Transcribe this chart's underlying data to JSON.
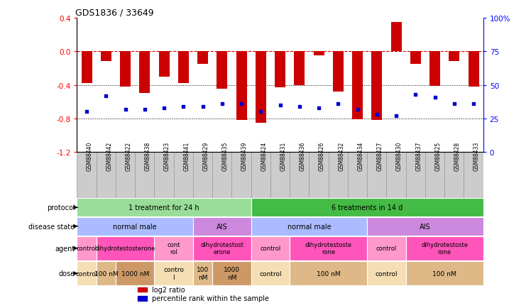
{
  "title": "GDS1836 / 33649",
  "samples": [
    "GSM88440",
    "GSM88442",
    "GSM88422",
    "GSM88438",
    "GSM88423",
    "GSM88441",
    "GSM88429",
    "GSM88435",
    "GSM88439",
    "GSM88424",
    "GSM88431",
    "GSM88436",
    "GSM88426",
    "GSM88432",
    "GSM88434",
    "GSM88427",
    "GSM88430",
    "GSM88437",
    "GSM88425",
    "GSM88428",
    "GSM88433"
  ],
  "log2_ratio": [
    -0.38,
    -0.12,
    -0.42,
    -0.5,
    -0.3,
    -0.38,
    -0.15,
    -0.45,
    -0.82,
    -0.85,
    -0.43,
    -0.4,
    -0.05,
    -0.48,
    -0.81,
    -0.82,
    0.35,
    -0.15,
    -0.41,
    -0.12,
    -0.42
  ],
  "percentile_rank": [
    30,
    42,
    32,
    32,
    33,
    34,
    34,
    36,
    36,
    30,
    35,
    34,
    33,
    36,
    32,
    28,
    27,
    43,
    41,
    36,
    36
  ],
  "ylim_left": [
    -1.2,
    0.4
  ],
  "ylim_right": [
    0,
    100
  ],
  "yticks_left": [
    -1.2,
    -0.8,
    -0.4,
    0.0,
    0.4
  ],
  "yticks_right": [
    0,
    25,
    50,
    75,
    100
  ],
  "ytick_labels_right": [
    "0",
    "25",
    "50",
    "75",
    "100%"
  ],
  "bar_color": "#cc0000",
  "dot_color": "#0000cc",
  "hline_color": "#cc0000",
  "dotted_hlines": [
    -0.4,
    -0.8
  ],
  "sample_bg_color": "#cccccc",
  "sample_border_color": "#999999",
  "protocol_groups": [
    {
      "label": "1 treatment for 24 h",
      "start": 0,
      "end": 9,
      "color": "#99dd99"
    },
    {
      "label": "6 treatments in 14 d",
      "start": 9,
      "end": 21,
      "color": "#44bb44"
    }
  ],
  "disease_state_groups": [
    {
      "label": "normal male",
      "start": 0,
      "end": 6,
      "color": "#aabbff"
    },
    {
      "label": "AIS",
      "start": 6,
      "end": 9,
      "color": "#cc88dd"
    },
    {
      "label": "normal male",
      "start": 9,
      "end": 15,
      "color": "#aabbff"
    },
    {
      "label": "AIS",
      "start": 15,
      "end": 21,
      "color": "#cc88dd"
    }
  ],
  "agent_groups": [
    {
      "label": "control",
      "start": 0,
      "end": 1,
      "color": "#ff99cc"
    },
    {
      "label": "dihydrotestosterone",
      "start": 1,
      "end": 4,
      "color": "#ff55bb"
    },
    {
      "label": "cont\nrol",
      "start": 4,
      "end": 6,
      "color": "#ff99cc"
    },
    {
      "label": "dihydrotestost\nerone",
      "start": 6,
      "end": 9,
      "color": "#ff55bb"
    },
    {
      "label": "control",
      "start": 9,
      "end": 11,
      "color": "#ff99cc"
    },
    {
      "label": "dihydrotestoste\nrone",
      "start": 11,
      "end": 15,
      "color": "#ff55bb"
    },
    {
      "label": "control",
      "start": 15,
      "end": 17,
      "color": "#ff99cc"
    },
    {
      "label": "dihydrotestoste\nrone",
      "start": 17,
      "end": 21,
      "color": "#ff55bb"
    }
  ],
  "dose_groups": [
    {
      "label": "control",
      "start": 0,
      "end": 1,
      "color": "#f5deb3"
    },
    {
      "label": "100 nM",
      "start": 1,
      "end": 2,
      "color": "#deb887"
    },
    {
      "label": "1000 nM",
      "start": 2,
      "end": 4,
      "color": "#cc9966"
    },
    {
      "label": "contro\nl",
      "start": 4,
      "end": 6,
      "color": "#f5deb3"
    },
    {
      "label": "100\nnM",
      "start": 6,
      "end": 7,
      "color": "#deb887"
    },
    {
      "label": "1000\nnM",
      "start": 7,
      "end": 9,
      "color": "#cc9966"
    },
    {
      "label": "control",
      "start": 9,
      "end": 11,
      "color": "#f5deb3"
    },
    {
      "label": "100 nM",
      "start": 11,
      "end": 15,
      "color": "#deb887"
    },
    {
      "label": "control",
      "start": 15,
      "end": 17,
      "color": "#f5deb3"
    },
    {
      "label": "100 nM",
      "start": 17,
      "end": 21,
      "color": "#deb887"
    }
  ],
  "row_labels": [
    "protocol",
    "disease state",
    "agent",
    "dose"
  ],
  "legend_items": [
    {
      "label": "log2 ratio",
      "color": "#cc0000"
    },
    {
      "label": "percentile rank within the sample",
      "color": "#0000cc"
    }
  ]
}
